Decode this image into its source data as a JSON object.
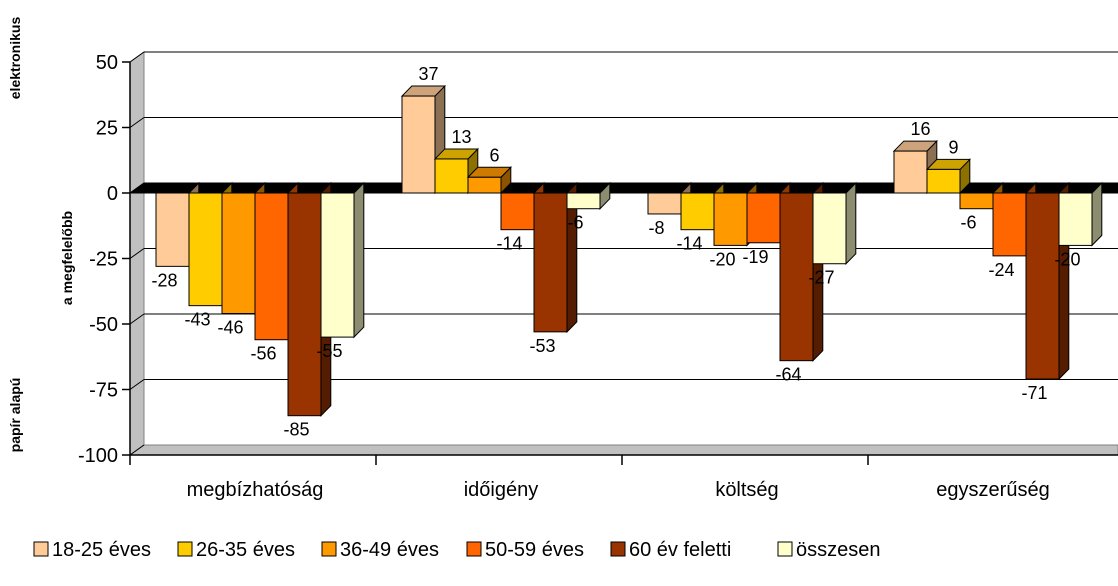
{
  "chart_data": {
    "type": "bar",
    "categories": [
      "megbízhatóság",
      "időigény",
      "költség",
      "egyszerűség"
    ],
    "series": [
      {
        "name": "18-25 éves",
        "color": "#FFCC99",
        "values": [
          -28,
          37,
          -8,
          16
        ]
      },
      {
        "name": "26-35 éves",
        "color": "#FFCC00",
        "values": [
          -43,
          13,
          -14,
          9
        ]
      },
      {
        "name": "36-49 éves",
        "color": "#FF9900",
        "values": [
          -46,
          6,
          -20,
          -6
        ]
      },
      {
        "name": "50-59 éves",
        "color": "#FF6600",
        "values": [
          -56,
          -14,
          -19,
          -24
        ]
      },
      {
        "name": "60 év feletti",
        "color": "#993300",
        "values": [
          -85,
          -53,
          -64,
          -71
        ]
      },
      {
        "name": "összesen",
        "color": "#FFFFCC",
        "values": [
          -55,
          -6,
          -27,
          -20
        ]
      }
    ],
    "ylim": [
      -100,
      50
    ],
    "yticks": [
      "50",
      "25",
      "0",
      "-25",
      "-50",
      "-75",
      "-100"
    ],
    "y_side_labels": {
      "top": "elektronikus",
      "middle": "a megfelelőbb",
      "bottom": "papír alapú"
    },
    "grid": true,
    "legend_position": "bottom",
    "bar_style": "3d"
  }
}
